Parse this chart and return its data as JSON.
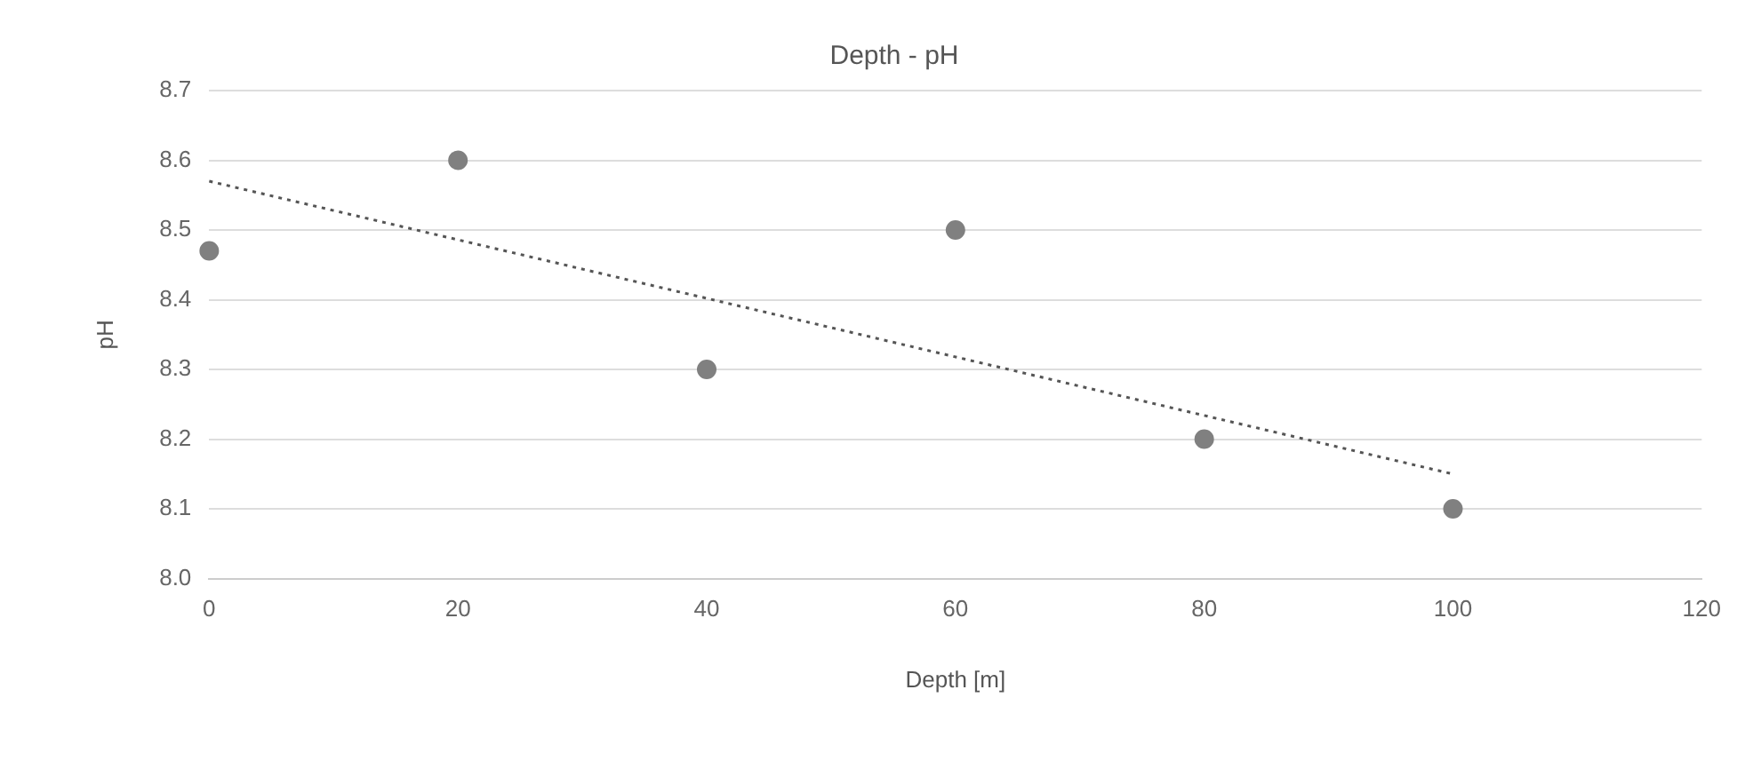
{
  "chart_data": {
    "type": "scatter",
    "title": "Depth - pH",
    "xlabel": "Depth [m]",
    "ylabel": "pH",
    "x": [
      0,
      20,
      40,
      60,
      80,
      100
    ],
    "series": [
      {
        "color": "#808080",
        "values": [
          8.47,
          8.6,
          8.3,
          8.5,
          8.2,
          8.1
        ]
      },
      {
        "type": "line",
        "color": "#555555",
        "x": [
          0,
          100
        ],
        "values": [
          8.57,
          8.15
        ],
        "line_style": "dotted",
        "marker": "none"
      }
    ],
    "xlim": [
      0,
      120
    ],
    "xticks": [
      0,
      20,
      40,
      60,
      80,
      100,
      120
    ],
    "ylim": [
      8,
      8.7
    ],
    "yticks": [
      {
        "value": 8,
        "label": "8.0"
      },
      {
        "value": 8.1,
        "label": "8.1"
      },
      {
        "value": 8.2,
        "label": "8.2"
      },
      {
        "value": 8.3,
        "label": "8.3"
      },
      {
        "value": 8.4,
        "label": "8.4"
      },
      {
        "value": 8.5,
        "label": "8.5"
      },
      {
        "value": 8.6,
        "label": "8.6"
      },
      {
        "value": 8.7,
        "label": "8.7"
      }
    ],
    "grid": "y",
    "marker": "circle",
    "legend": false
  }
}
